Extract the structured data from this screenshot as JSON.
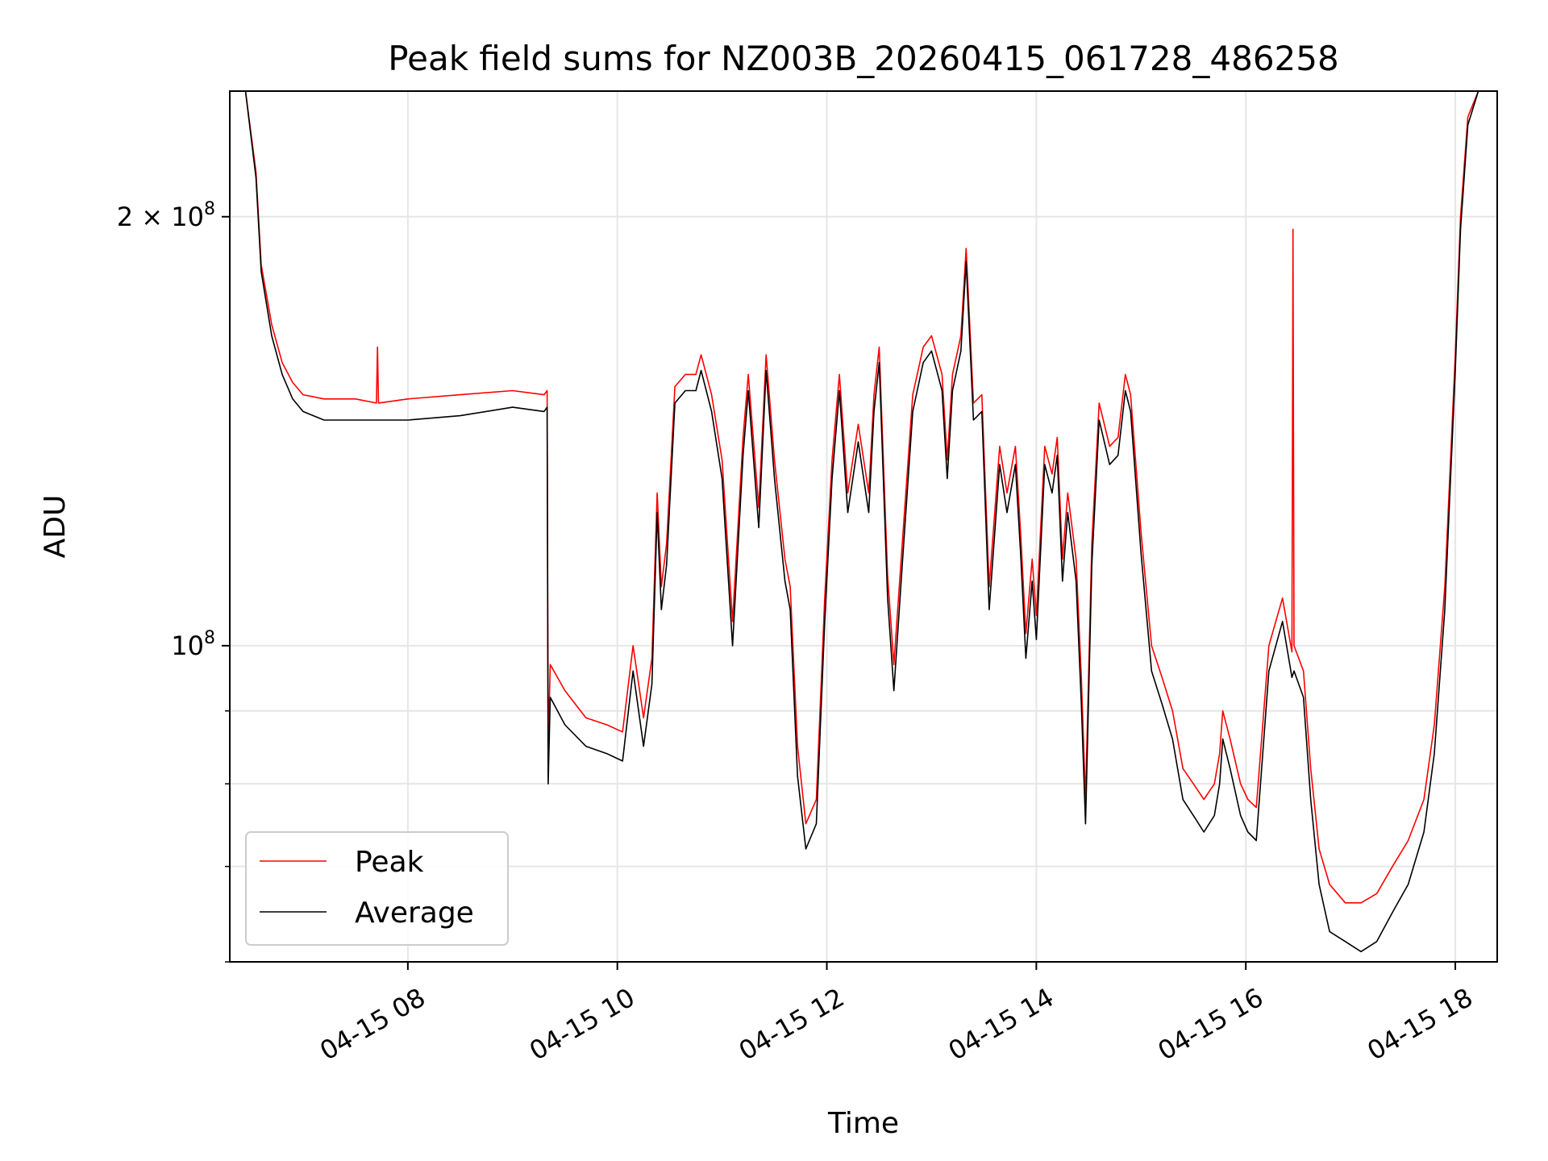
{
  "chart_data": {
    "type": "line",
    "title": "Peak field sums for NZ003B_20260415_061728_486258",
    "xlabel": "Time",
    "ylabel": "ADU",
    "x_unit": "hours since 04-15 00:00",
    "xlim": [
      6.3,
      18.4
    ],
    "ylim": [
      60000000,
      245000000
    ],
    "y_scale": "log",
    "grid": true,
    "legend_position": "lower-left",
    "x_ticks": [
      {
        "value": 8,
        "label": "04-15 08"
      },
      {
        "value": 10,
        "label": "04-15 10"
      },
      {
        "value": 12,
        "label": "04-15 12"
      },
      {
        "value": 14,
        "label": "04-15 14"
      },
      {
        "value": 16,
        "label": "04-15 16"
      },
      {
        "value": 18,
        "label": "04-15 18"
      }
    ],
    "y_major_ticks": [
      {
        "value": 100000000,
        "label_base": "10",
        "label_exp": "8"
      },
      {
        "value": 200000000,
        "label_base": "2 × 10",
        "label_exp": "8"
      }
    ],
    "y_minor_ticks": [
      60000000,
      70000000,
      80000000,
      90000000
    ],
    "series": [
      {
        "name": "Peak",
        "color": "#ff0000",
        "points": [
          [
            6.3,
            245000000
          ],
          [
            6.45,
            245000000
          ],
          [
            6.55,
            215000000
          ],
          [
            6.6,
            185000000
          ],
          [
            6.7,
            168000000
          ],
          [
            6.8,
            158000000
          ],
          [
            6.9,
            153000000
          ],
          [
            7.0,
            150000000
          ],
          [
            7.2,
            149000000
          ],
          [
            7.5,
            149000000
          ],
          [
            7.7,
            148000000
          ],
          [
            7.71,
            162000000
          ],
          [
            7.72,
            148000000
          ],
          [
            8.0,
            149000000
          ],
          [
            8.5,
            150000000
          ],
          [
            9.0,
            151000000
          ],
          [
            9.3,
            150000000
          ],
          [
            9.33,
            151000000
          ],
          [
            9.34,
            85000000
          ],
          [
            9.36,
            97000000
          ],
          [
            9.5,
            93000000
          ],
          [
            9.7,
            89000000
          ],
          [
            9.9,
            88000000
          ],
          [
            10.05,
            87000000
          ],
          [
            10.15,
            100000000
          ],
          [
            10.25,
            89000000
          ],
          [
            10.33,
            98000000
          ],
          [
            10.38,
            128000000
          ],
          [
            10.42,
            110000000
          ],
          [
            10.47,
            118000000
          ],
          [
            10.55,
            152000000
          ],
          [
            10.65,
            155000000
          ],
          [
            10.75,
            155000000
          ],
          [
            10.8,
            160000000
          ],
          [
            10.9,
            150000000
          ],
          [
            11.0,
            135000000
          ],
          [
            11.1,
            104000000
          ],
          [
            11.2,
            140000000
          ],
          [
            11.25,
            155000000
          ],
          [
            11.35,
            125000000
          ],
          [
            11.42,
            160000000
          ],
          [
            11.5,
            135000000
          ],
          [
            11.6,
            115000000
          ],
          [
            11.65,
            110000000
          ],
          [
            11.72,
            85000000
          ],
          [
            11.8,
            75000000
          ],
          [
            11.9,
            78000000
          ],
          [
            11.98,
            108000000
          ],
          [
            12.05,
            135000000
          ],
          [
            12.12,
            155000000
          ],
          [
            12.2,
            128000000
          ],
          [
            12.3,
            143000000
          ],
          [
            12.4,
            128000000
          ],
          [
            12.45,
            150000000
          ],
          [
            12.5,
            162000000
          ],
          [
            12.58,
            112000000
          ],
          [
            12.64,
            97000000
          ],
          [
            12.72,
            118000000
          ],
          [
            12.82,
            150000000
          ],
          [
            12.92,
            162000000
          ],
          [
            13.0,
            165000000
          ],
          [
            13.1,
            155000000
          ],
          [
            13.15,
            135000000
          ],
          [
            13.2,
            155000000
          ],
          [
            13.28,
            165000000
          ],
          [
            13.33,
            190000000
          ],
          [
            13.4,
            148000000
          ],
          [
            13.48,
            150000000
          ],
          [
            13.55,
            110000000
          ],
          [
            13.65,
            138000000
          ],
          [
            13.72,
            128000000
          ],
          [
            13.8,
            138000000
          ],
          [
            13.85,
            120000000
          ],
          [
            13.9,
            102000000
          ],
          [
            13.96,
            115000000
          ],
          [
            14.0,
            105000000
          ],
          [
            14.08,
            138000000
          ],
          [
            14.15,
            132000000
          ],
          [
            14.2,
            140000000
          ],
          [
            14.25,
            115000000
          ],
          [
            14.3,
            128000000
          ],
          [
            14.38,
            115000000
          ],
          [
            14.43,
            95000000
          ],
          [
            14.47,
            78000000
          ],
          [
            14.53,
            118000000
          ],
          [
            14.6,
            148000000
          ],
          [
            14.7,
            138000000
          ],
          [
            14.78,
            140000000
          ],
          [
            14.85,
            155000000
          ],
          [
            14.9,
            150000000
          ],
          [
            15.0,
            120000000
          ],
          [
            15.1,
            100000000
          ],
          [
            15.2,
            95000000
          ],
          [
            15.3,
            90000000
          ],
          [
            15.4,
            82000000
          ],
          [
            15.5,
            80000000
          ],
          [
            15.6,
            78000000
          ],
          [
            15.7,
            80000000
          ],
          [
            15.75,
            84000000
          ],
          [
            15.78,
            90000000
          ],
          [
            15.85,
            86000000
          ],
          [
            15.95,
            80000000
          ],
          [
            16.02,
            78000000
          ],
          [
            16.1,
            77000000
          ],
          [
            16.22,
            100000000
          ],
          [
            16.35,
            108000000
          ],
          [
            16.44,
            99000000
          ],
          [
            16.45,
            196000000
          ],
          [
            16.46,
            100000000
          ],
          [
            16.55,
            96000000
          ],
          [
            16.62,
            82000000
          ],
          [
            16.7,
            72000000
          ],
          [
            16.8,
            68000000
          ],
          [
            16.95,
            66000000
          ],
          [
            17.1,
            66000000
          ],
          [
            17.25,
            67000000
          ],
          [
            17.4,
            70000000
          ],
          [
            17.55,
            73000000
          ],
          [
            17.7,
            78000000
          ],
          [
            17.8,
            88000000
          ],
          [
            17.9,
            110000000
          ],
          [
            18.0,
            160000000
          ],
          [
            18.05,
            200000000
          ],
          [
            18.12,
            235000000
          ],
          [
            18.22,
            245000000
          ],
          [
            18.4,
            245000000
          ]
        ]
      },
      {
        "name": "Average",
        "color": "#000000",
        "points": [
          [
            6.3,
            245000000
          ],
          [
            6.45,
            245000000
          ],
          [
            6.55,
            213000000
          ],
          [
            6.6,
            183000000
          ],
          [
            6.7,
            165000000
          ],
          [
            6.8,
            155000000
          ],
          [
            6.9,
            149000000
          ],
          [
            7.0,
            146000000
          ],
          [
            7.2,
            144000000
          ],
          [
            7.5,
            144000000
          ],
          [
            7.7,
            144000000
          ],
          [
            8.0,
            144000000
          ],
          [
            8.5,
            145000000
          ],
          [
            9.0,
            147000000
          ],
          [
            9.3,
            146000000
          ],
          [
            9.33,
            147000000
          ],
          [
            9.34,
            80000000
          ],
          [
            9.36,
            92000000
          ],
          [
            9.5,
            88000000
          ],
          [
            9.7,
            85000000
          ],
          [
            9.9,
            84000000
          ],
          [
            10.05,
            83000000
          ],
          [
            10.15,
            96000000
          ],
          [
            10.25,
            85000000
          ],
          [
            10.33,
            94000000
          ],
          [
            10.38,
            124000000
          ],
          [
            10.42,
            106000000
          ],
          [
            10.47,
            114000000
          ],
          [
            10.55,
            148000000
          ],
          [
            10.65,
            151000000
          ],
          [
            10.75,
            151000000
          ],
          [
            10.8,
            156000000
          ],
          [
            10.9,
            146000000
          ],
          [
            11.0,
            131000000
          ],
          [
            11.1,
            100000000
          ],
          [
            11.2,
            136000000
          ],
          [
            11.25,
            151000000
          ],
          [
            11.35,
            121000000
          ],
          [
            11.42,
            156000000
          ],
          [
            11.5,
            131000000
          ],
          [
            11.6,
            111000000
          ],
          [
            11.65,
            106000000
          ],
          [
            11.72,
            81000000
          ],
          [
            11.8,
            72000000
          ],
          [
            11.9,
            75000000
          ],
          [
            11.98,
            104000000
          ],
          [
            12.05,
            131000000
          ],
          [
            12.12,
            151000000
          ],
          [
            12.2,
            124000000
          ],
          [
            12.3,
            139000000
          ],
          [
            12.4,
            124000000
          ],
          [
            12.45,
            146000000
          ],
          [
            12.5,
            158000000
          ],
          [
            12.58,
            108000000
          ],
          [
            12.64,
            93000000
          ],
          [
            12.72,
            114000000
          ],
          [
            12.82,
            146000000
          ],
          [
            12.92,
            158000000
          ],
          [
            13.0,
            161000000
          ],
          [
            13.1,
            151000000
          ],
          [
            13.15,
            131000000
          ],
          [
            13.2,
            151000000
          ],
          [
            13.28,
            161000000
          ],
          [
            13.33,
            186000000
          ],
          [
            13.4,
            144000000
          ],
          [
            13.48,
            146000000
          ],
          [
            13.55,
            106000000
          ],
          [
            13.65,
            134000000
          ],
          [
            13.72,
            124000000
          ],
          [
            13.8,
            134000000
          ],
          [
            13.85,
            116000000
          ],
          [
            13.9,
            98000000
          ],
          [
            13.96,
            111000000
          ],
          [
            14.0,
            101000000
          ],
          [
            14.08,
            134000000
          ],
          [
            14.15,
            128000000
          ],
          [
            14.2,
            136000000
          ],
          [
            14.25,
            111000000
          ],
          [
            14.3,
            124000000
          ],
          [
            14.38,
            111000000
          ],
          [
            14.43,
            91000000
          ],
          [
            14.47,
            75000000
          ],
          [
            14.53,
            114000000
          ],
          [
            14.6,
            144000000
          ],
          [
            14.7,
            134000000
          ],
          [
            14.78,
            136000000
          ],
          [
            14.85,
            151000000
          ],
          [
            14.9,
            146000000
          ],
          [
            15.0,
            116000000
          ],
          [
            15.1,
            96000000
          ],
          [
            15.2,
            91000000
          ],
          [
            15.3,
            86000000
          ],
          [
            15.4,
            78000000
          ],
          [
            15.5,
            76000000
          ],
          [
            15.6,
            74000000
          ],
          [
            15.7,
            76000000
          ],
          [
            15.75,
            80000000
          ],
          [
            15.78,
            86000000
          ],
          [
            15.85,
            82000000
          ],
          [
            15.95,
            76000000
          ],
          [
            16.02,
            74000000
          ],
          [
            16.1,
            73000000
          ],
          [
            16.22,
            96000000
          ],
          [
            16.35,
            104000000
          ],
          [
            16.44,
            95000000
          ],
          [
            16.46,
            96000000
          ],
          [
            16.55,
            92000000
          ],
          [
            16.62,
            78000000
          ],
          [
            16.7,
            68000000
          ],
          [
            16.8,
            63000000
          ],
          [
            16.95,
            62000000
          ],
          [
            17.1,
            61000000
          ],
          [
            17.25,
            62000000
          ],
          [
            17.4,
            65000000
          ],
          [
            17.55,
            68000000
          ],
          [
            17.7,
            74000000
          ],
          [
            17.8,
            84000000
          ],
          [
            17.9,
            106000000
          ],
          [
            18.0,
            156000000
          ],
          [
            18.05,
            196000000
          ],
          [
            18.12,
            232000000
          ],
          [
            18.22,
            245000000
          ],
          [
            18.4,
            245000000
          ]
        ]
      }
    ]
  }
}
